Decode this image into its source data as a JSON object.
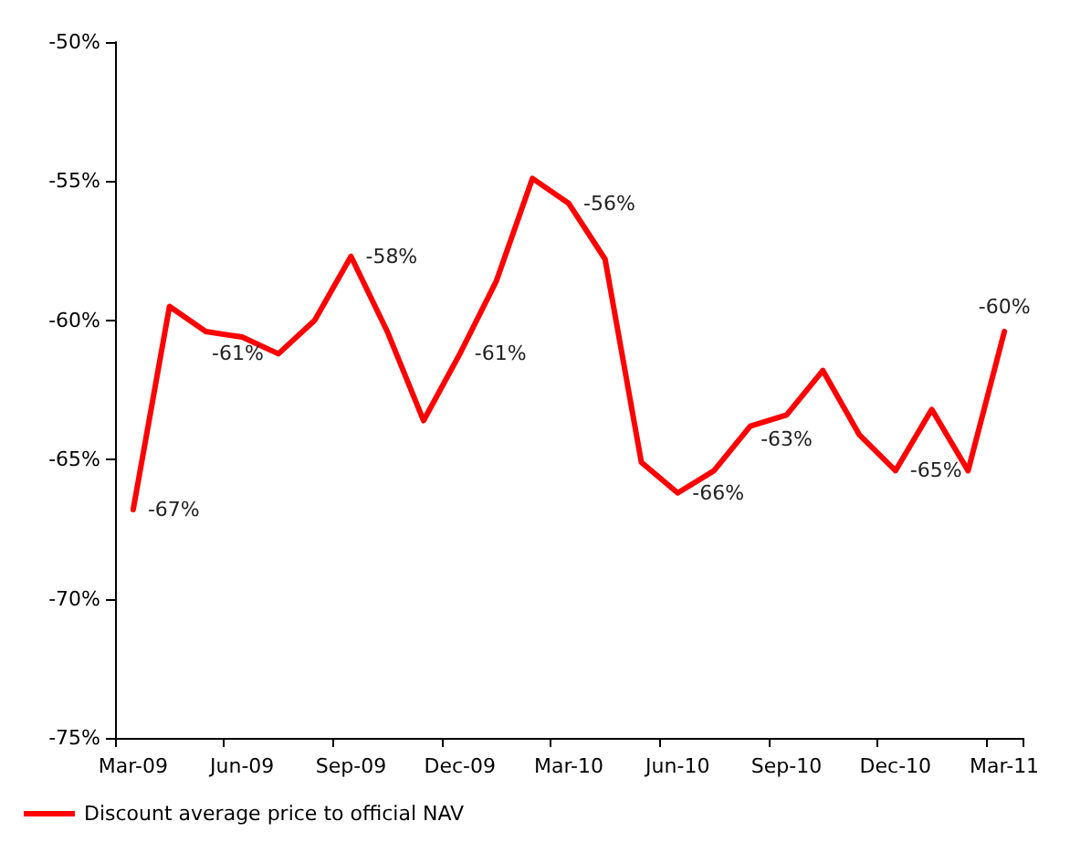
{
  "chart_data": {
    "type": "line",
    "categories": [
      "Mar-09",
      null,
      null,
      "Jun-09",
      null,
      null,
      "Sep-09",
      null,
      null,
      "Dec-09",
      null,
      null,
      "Mar-10",
      null,
      null,
      "Jun-10",
      null,
      null,
      "Sep-10",
      null,
      null,
      "Dec-10",
      null,
      null,
      "Mar-11"
    ],
    "series": [
      {
        "name": "Discount average price to official NAV",
        "color": "#ff0000",
        "values": [
          -66.8,
          -59.5,
          -60.4,
          -60.6,
          -61.2,
          -60.0,
          -57.7,
          -60.4,
          -63.6,
          -61.2,
          -58.6,
          -54.9,
          -55.8,
          -57.8,
          -65.1,
          -66.2,
          -65.4,
          -63.8,
          -63.4,
          -61.8,
          -64.1,
          -65.4,
          -63.2,
          -65.4,
          -60.4
        ],
        "value_labels": [
          "-67%",
          null,
          null,
          null,
          "-61%",
          null,
          "-58%",
          null,
          null,
          "-61%",
          null,
          null,
          "-56%",
          null,
          null,
          "-66%",
          null,
          null,
          "-63%",
          null,
          null,
          "-65%",
          null,
          null,
          "-60%"
        ]
      }
    ],
    "ylim": [
      -75,
      -50
    ],
    "yticks": [
      {
        "value": -75,
        "label": "-75%"
      },
      {
        "value": -70,
        "label": "-70%"
      },
      {
        "value": -65,
        "label": "-65%"
      },
      {
        "value": -60,
        "label": "-60%"
      },
      {
        "value": -55,
        "label": "-55%"
      },
      {
        "value": -50,
        "label": "-50%"
      }
    ],
    "grid": false,
    "legend": "bottom left",
    "marker": "none",
    "line_style": "solid"
  }
}
